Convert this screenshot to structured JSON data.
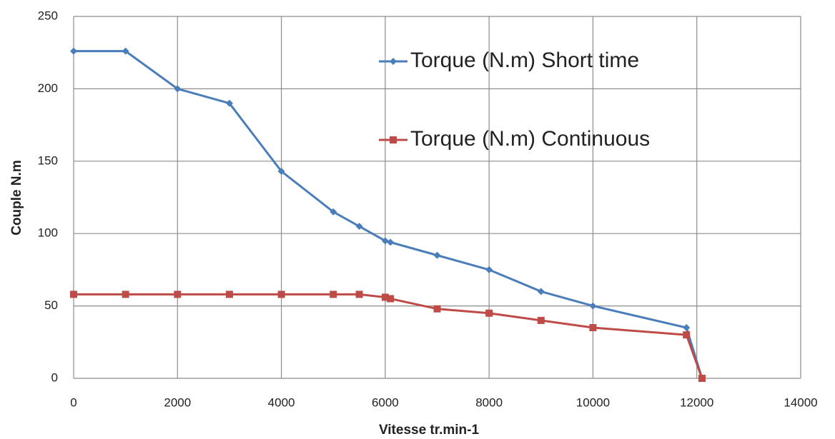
{
  "chart_data": {
    "type": "line",
    "x_label": "Vitesse tr.min-1",
    "y_label": "Couple N.m",
    "x": [
      0,
      1000,
      2000,
      3000,
      4000,
      5000,
      5500,
      6000,
      6100,
      7000,
      8000,
      9000,
      10000,
      11800,
      12100
    ],
    "series": [
      {
        "name": "Torque (N.m) Short time",
        "color": "#4a7ebb",
        "marker": "diamond",
        "values": [
          226,
          226,
          200,
          190,
          143,
          115,
          105,
          95,
          94,
          85,
          75,
          60,
          50,
          35,
          0
        ]
      },
      {
        "name": "Torque (N.m) Continuous",
        "color": "#be4b48",
        "marker": "square",
        "values": [
          58,
          58,
          58,
          58,
          58,
          58,
          58,
          56,
          55,
          48,
          45,
          40,
          35,
          30,
          0
        ]
      }
    ],
    "xlim": [
      0,
      14000
    ],
    "xticks": [
      0,
      2000,
      4000,
      6000,
      8000,
      10000,
      12000,
      14000
    ],
    "ylim": [
      0,
      250
    ],
    "yticks": [
      0,
      50,
      100,
      150,
      200,
      250
    ],
    "grid": true
  }
}
